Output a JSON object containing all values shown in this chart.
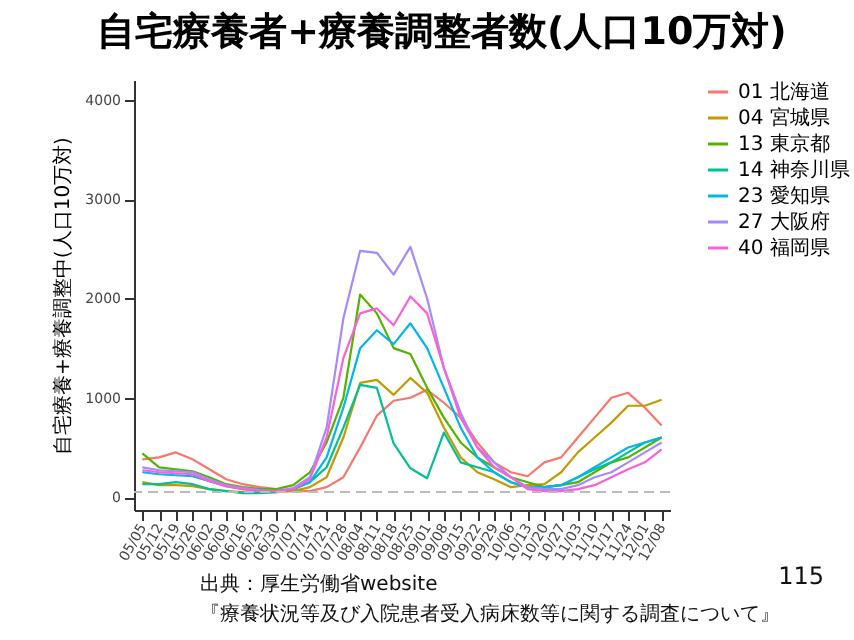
{
  "chart_data": {
    "type": "line",
    "title": "自宅療養者+療養調整者数(人口10万対)",
    "ylabel": "自宅療養+療養調整中(人口10万対)",
    "categories": [
      "05/05",
      "05/12",
      "05/19",
      "05/26",
      "06/02",
      "06/09",
      "06/16",
      "06/23",
      "06/30",
      "07/07",
      "07/14",
      "07/21",
      "07/28",
      "08/04",
      "08/11",
      "08/18",
      "08/25",
      "09/01",
      "09/08",
      "09/15",
      "09/22",
      "09/29",
      "10/06",
      "10/13",
      "10/20",
      "10/27",
      "11/03",
      "11/10",
      "11/17",
      "11/24",
      "12/01",
      "12/08"
    ],
    "series": [
      {
        "name": "01 北海道",
        "color": "#f8766d",
        "values": [
          380,
          400,
          450,
          380,
          280,
          180,
          130,
          100,
          80,
          60,
          60,
          100,
          200,
          500,
          820,
          970,
          1000,
          1080,
          950,
          800,
          550,
          350,
          250,
          210,
          350,
          400,
          600,
          800,
          1000,
          1050,
          900,
          720
        ]
      },
      {
        "name": "04 宮城県",
        "color": "#c49a00",
        "values": [
          150,
          120,
          120,
          110,
          80,
          60,
          50,
          50,
          50,
          60,
          100,
          200,
          600,
          1150,
          1180,
          1030,
          1200,
          1050,
          700,
          400,
          250,
          180,
          100,
          120,
          130,
          250,
          450,
          600,
          750,
          920,
          920,
          980
        ]
      },
      {
        "name": "13 東京都",
        "color": "#53b400",
        "values": [
          440,
          300,
          280,
          260,
          200,
          130,
          100,
          80,
          80,
          120,
          250,
          550,
          1000,
          2040,
          1850,
          1500,
          1440,
          1100,
          800,
          550,
          400,
          300,
          200,
          150,
          100,
          120,
          150,
          250,
          350,
          400,
          500,
          600
        ]
      },
      {
        "name": "14 神奈川県",
        "color": "#00c094",
        "values": [
          130,
          130,
          150,
          130,
          80,
          60,
          40,
          40,
          50,
          80,
          150,
          300,
          700,
          1130,
          1100,
          540,
          290,
          190,
          650,
          350,
          300,
          250,
          150,
          100,
          100,
          120,
          200,
          280,
          350,
          450,
          550,
          600
        ]
      },
      {
        "name": "23 愛知県",
        "color": "#00b6eb",
        "values": [
          250,
          230,
          220,
          210,
          160,
          110,
          80,
          60,
          60,
          80,
          150,
          400,
          900,
          1500,
          1680,
          1540,
          1750,
          1500,
          1100,
          700,
          400,
          250,
          150,
          100,
          100,
          120,
          200,
          300,
          400,
          500,
          550,
          600
        ]
      },
      {
        "name": "27 大阪府",
        "color": "#a58aff",
        "values": [
          300,
          270,
          260,
          250,
          180,
          120,
          90,
          70,
          60,
          90,
          200,
          700,
          1800,
          2480,
          2460,
          2240,
          2520,
          2000,
          1300,
          850,
          500,
          350,
          200,
          100,
          80,
          80,
          120,
          200,
          250,
          350,
          450,
          550
        ]
      },
      {
        "name": "40 福岡県",
        "color": "#fb61d7",
        "values": [
          270,
          250,
          240,
          230,
          160,
          110,
          80,
          60,
          60,
          80,
          180,
          600,
          1400,
          1850,
          1900,
          1730,
          2020,
          1850,
          1300,
          800,
          500,
          300,
          200,
          80,
          60,
          60,
          80,
          120,
          200,
          280,
          350,
          480
        ]
      }
    ],
    "ylim": [
      -130,
      4200
    ],
    "yticks": [
      0,
      1000,
      2000,
      3000,
      4000
    ],
    "grid": false,
    "legend": "right",
    "marker": "none",
    "line_style": "solid",
    "ref_lines": [
      {
        "axis": "y",
        "value": 50,
        "line_style": "dashed",
        "color": "#bbbbbb"
      }
    ],
    "annotations": [
      "出典：厚生労働省website",
      "『療養状況等及び入院患者受入病床数等に関する調査について』",
      "115"
    ]
  }
}
